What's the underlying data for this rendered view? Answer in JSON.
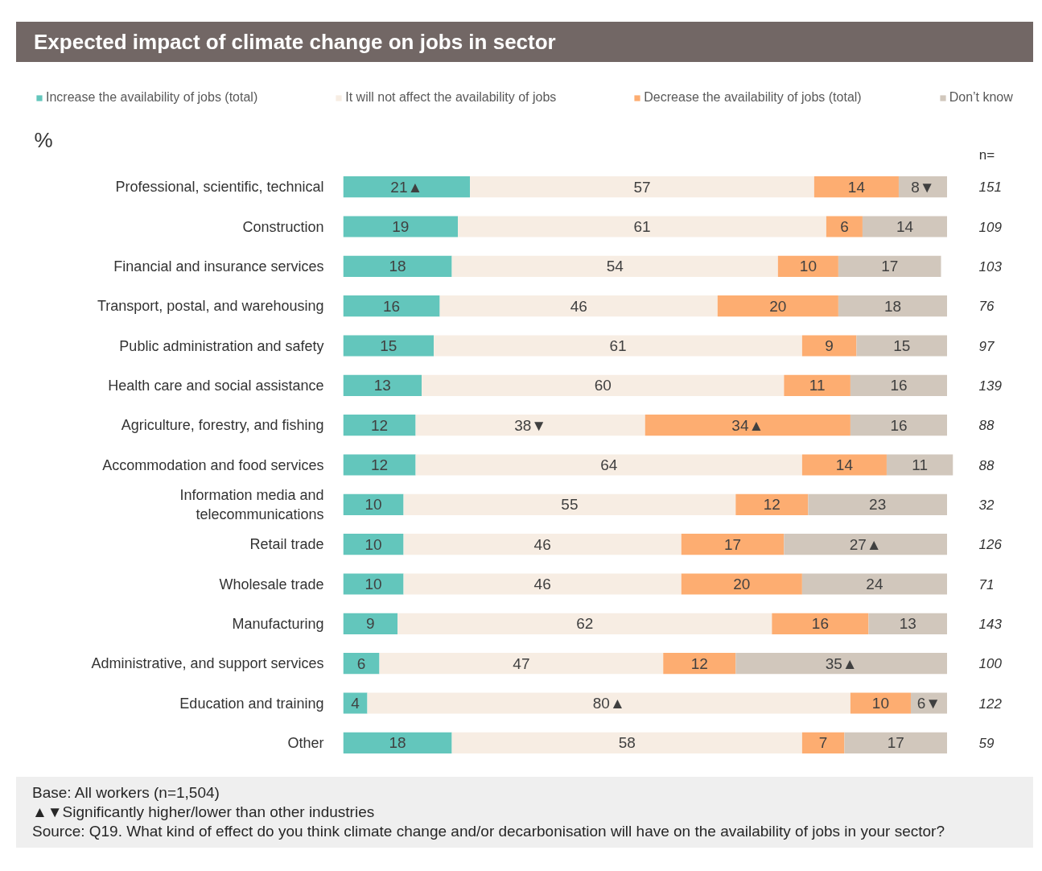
{
  "chart_data": {
    "type": "bar",
    "orientation": "horizontal",
    "stacked": true,
    "title": "Expected impact of climate change on jobs in sector",
    "xlabel": "%",
    "y2label": "n=",
    "categories": [
      "Professional, scientific, technical",
      "Construction",
      "Financial and insurance services",
      "Transport, postal, and warehousing",
      "Public administration and safety",
      "Health care and social assistance",
      "Agriculture, forestry, and fishing",
      "Accommodation and food services",
      "Information media and\ntelecommunications",
      "Retail trade",
      "Wholesale trade",
      "Manufacturing",
      "Administrative, and support services",
      "Education and training",
      "Other"
    ],
    "y2_categories": [
      "151",
      "109",
      "103",
      "76",
      "97",
      "139",
      "88",
      "88",
      "32",
      "126",
      "71",
      "143",
      "100",
      "122",
      "59"
    ],
    "series": [
      {
        "name": "Increase the availability of jobs (total)",
        "color": "#63c6bc",
        "values": [
          21,
          19,
          18,
          16,
          15,
          13,
          12,
          12,
          10,
          10,
          10,
          9,
          6,
          4,
          18
        ],
        "value_labels": [
          "21▲",
          "19",
          "18",
          "16",
          "15",
          "13",
          "12",
          "12",
          "10",
          "10",
          "10",
          "9",
          "6",
          "4",
          "18"
        ]
      },
      {
        "name": "It will not affect the availability of jobs",
        "color": "#f7ede3",
        "values": [
          57,
          61,
          54,
          46,
          61,
          60,
          38,
          64,
          55,
          46,
          46,
          62,
          47,
          80,
          58
        ],
        "value_labels": [
          "57",
          "61",
          "54",
          "46",
          "61",
          "60",
          "38▼",
          "64",
          "55",
          "46",
          "46",
          "62",
          "47",
          "80▲",
          "58"
        ]
      },
      {
        "name": "Decrease the availability of jobs (total)",
        "color": "#fdad71",
        "values": [
          14,
          6,
          10,
          20,
          9,
          11,
          34,
          14,
          12,
          17,
          20,
          16,
          12,
          10,
          7
        ],
        "value_labels": [
          "14",
          "6",
          "10",
          "20",
          "9",
          "11",
          "34▲",
          "14",
          "12",
          "17",
          "20",
          "16",
          "12",
          "10",
          "7"
        ]
      },
      {
        "name": "Don’t know",
        "color": "#d1c7bc",
        "values": [
          8,
          14,
          17,
          18,
          15,
          16,
          16,
          11,
          23,
          27,
          24,
          13,
          35,
          6,
          17
        ],
        "value_labels": [
          "8▼",
          "14",
          "17",
          "18",
          "15",
          "16",
          "16",
          "11",
          "23",
          "27▲",
          "24",
          "13",
          "35▲",
          "6▼",
          "17"
        ]
      }
    ],
    "xlim": [
      0,
      101
    ],
    "tick_labels": "y",
    "legend": "top",
    "annotations": [
      "Base: All workers (n=1,504)",
      "▲▼Significantly higher/lower than other industries",
      "Source: Q19. What kind of effect do you think climate change and/or decarbonisation will have on the availability of jobs in your sector?"
    ]
  }
}
